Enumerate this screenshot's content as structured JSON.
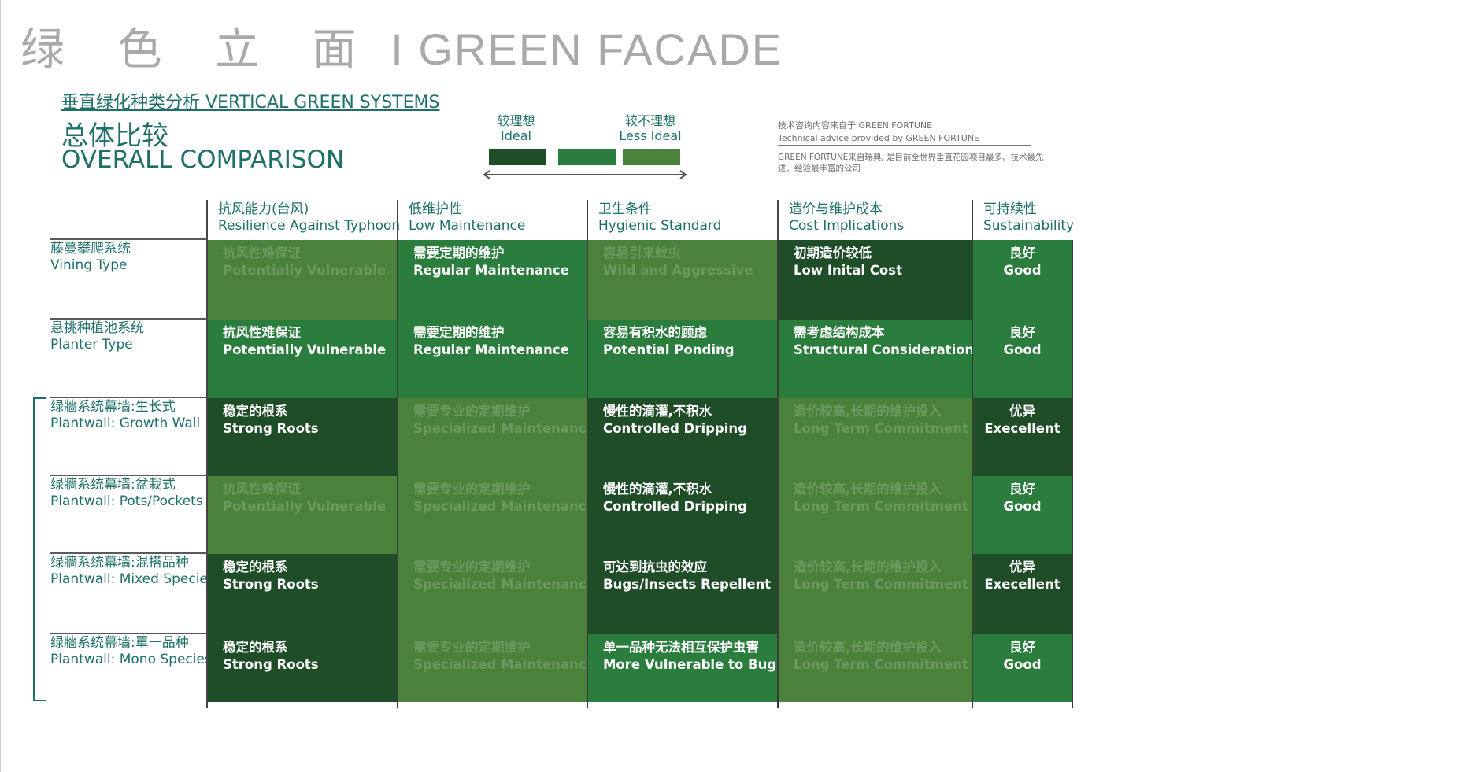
{
  "title": {
    "zh": "绿 色 立 面",
    "sep": " I ",
    "en": "GREEN FACADE"
  },
  "subtitle": "垂直绿化种类分析 VERTICAL GREEN SYSTEMS",
  "heading": {
    "zh": "总体比较",
    "en": "OVERALL COMPARISON"
  },
  "legend": {
    "ideal_zh": "较理想",
    "ideal_en": "Ideal",
    "less_zh": "较不理想",
    "less_en": "Less Ideal",
    "colors": [
      "#1f4d28",
      "#2b7d3e",
      "#4a823b"
    ]
  },
  "advice": {
    "zh": "技术咨询内容来自于 GREEN FORTUNE",
    "en": "Technical advice provided by GREEN FORTUNE",
    "company": "GREEN FORTUNE来自瑞典, 是目前全世界垂直花园项目最多、技术最先进、经验最丰富的公司"
  },
  "columns": [
    {
      "zh": "抗风能力(台风)",
      "en": "Resilience Against Typhoon"
    },
    {
      "zh": "低维护性",
      "en": "Low Maintenance"
    },
    {
      "zh": "卫生条件",
      "en": "Hygienic Standard"
    },
    {
      "zh": "造价与维护成本",
      "en": "Cost Implications"
    },
    {
      "zh": "可持续性",
      "en": "Sustainability"
    }
  ],
  "rows": [
    {
      "zh": "藤蔓攀爬系统",
      "en": "Vining Type",
      "cells": [
        {
          "zh": "抗风性难保证",
          "en": "Potentially Vulnerable",
          "shade": 3,
          "dim": true
        },
        {
          "zh": "需要定期的维护",
          "en": "Regular Maintenance",
          "shade": 2
        },
        {
          "zh": "容易引来蚊虫",
          "en": "Wild and Aggressive",
          "shade": 3,
          "dim": true
        },
        {
          "zh": "初期造价较低",
          "en": "Low Inital Cost",
          "shade": 1
        },
        {
          "zh": "良好",
          "en": "Good",
          "shade": 2
        }
      ]
    },
    {
      "zh": "悬挑种植池系统",
      "en": "Planter Type",
      "cells": [
        {
          "zh": "抗风性难保证",
          "en": "Potentially Vulnerable",
          "shade": 2
        },
        {
          "zh": "需要定期的维护",
          "en": "Regular Maintenance",
          "shade": 2
        },
        {
          "zh": "容易有积水的顾虑",
          "en": "Potential Ponding",
          "shade": 2
        },
        {
          "zh": "需考虑结构成本",
          "en": "Structural Consideration",
          "shade": 2
        },
        {
          "zh": "良好",
          "en": "Good",
          "shade": 2
        }
      ]
    },
    {
      "zh": "绿牆系统幕墙:生长式",
      "en": "Plantwall: Growth Wall",
      "cells": [
        {
          "zh": "稳定的根系",
          "en": "Strong Roots",
          "shade": 1
        },
        {
          "zh": "需要专业的定期维护",
          "en": "Specialized Maintenance",
          "shade": 3,
          "dim": true
        },
        {
          "zh": "慢性的滴灌,不积水",
          "en": "Controlled Dripping",
          "shade": 1
        },
        {
          "zh": "造价较高,长期的维护投入",
          "en": "Long Term Commitment",
          "shade": 3,
          "dim": true
        },
        {
          "zh": "优异",
          "en": "Execellent",
          "shade": 1
        }
      ]
    },
    {
      "zh": "绿牆系统幕墙:盆栽式",
      "en": "Plantwall: Pots/Pockets",
      "cells": [
        {
          "zh": "抗风性难保证",
          "en": "Potentially Vulnerable",
          "shade": 3,
          "dim": true
        },
        {
          "zh": "需要专业的定期维护",
          "en": "Specialized Maintenance",
          "shade": 3,
          "dim": true
        },
        {
          "zh": "慢性的滴灌,不积水",
          "en": "Controlled Dripping",
          "shade": 1
        },
        {
          "zh": "造价较高,长期的维护投入",
          "en": "Long Term Commitment",
          "shade": 3,
          "dim": true
        },
        {
          "zh": "良好",
          "en": "Good",
          "shade": 2
        }
      ]
    },
    {
      "zh": "绿牆系统幕墙:混搭品种",
      "en": "Plantwall: Mixed Species",
      "cells": [
        {
          "zh": "稳定的根系",
          "en": "Strong Roots",
          "shade": 1
        },
        {
          "zh": "需要专业的定期维护",
          "en": "Specialized Maintenance",
          "shade": 3,
          "dim": true
        },
        {
          "zh": "可达到抗虫的效应",
          "en": "Bugs/Insects Repellent",
          "shade": 1
        },
        {
          "zh": "造价较高,长期的维护投入",
          "en": "Long Term Commitment",
          "shade": 3,
          "dim": true
        },
        {
          "zh": "优异",
          "en": "Execellent",
          "shade": 1
        }
      ]
    },
    {
      "zh": "绿牆系统幕墙:單一品种",
      "en": "Plantwall: Mono Species",
      "cells": [
        {
          "zh": "稳定的根系",
          "en": "Strong Roots",
          "shade": 1
        },
        {
          "zh": "需要专业的定期维护",
          "en": "Specialized Maintenance",
          "shade": 3,
          "dim": true
        },
        {
          "zh": "单一品种无法相互保护虫害",
          "en": "More Vulnerable to Bugs",
          "shade": 2
        },
        {
          "zh": "造价较高,长期的维护投入",
          "en": "Long Term Commitment",
          "shade": 3,
          "dim": true
        },
        {
          "zh": "良好",
          "en": "Good",
          "shade": 2
        }
      ]
    }
  ]
}
